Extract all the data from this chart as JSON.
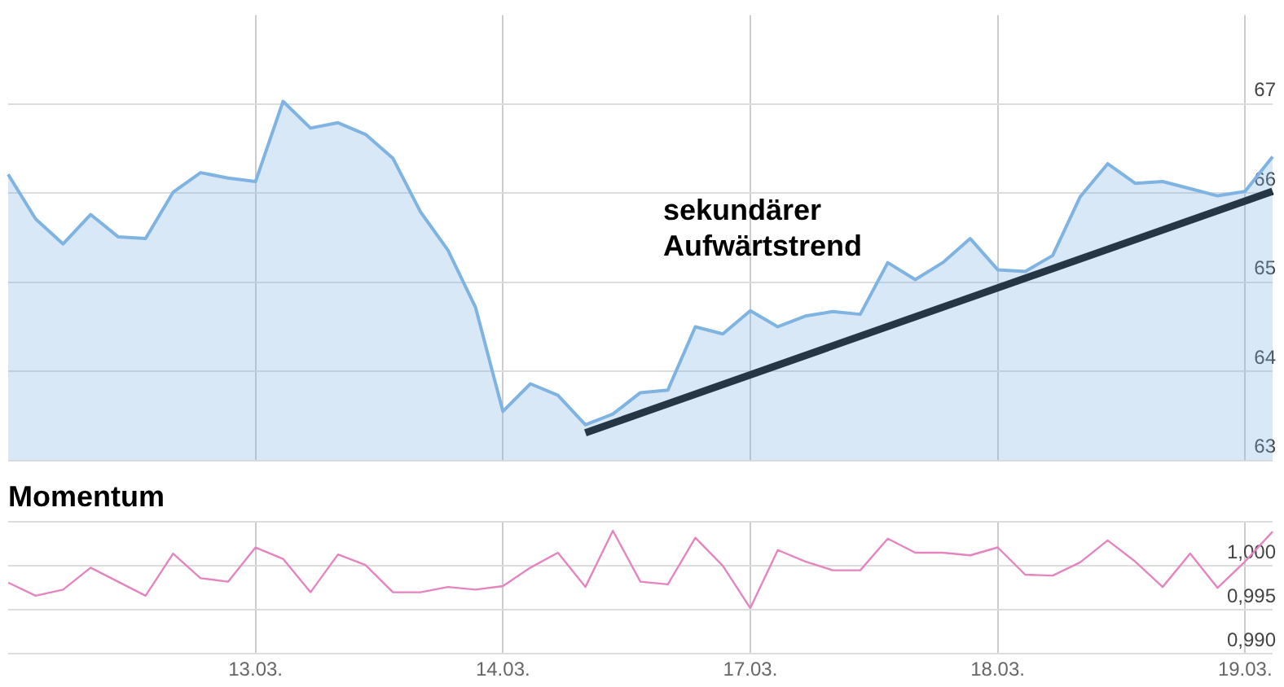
{
  "chart_data": [
    {
      "type": "area",
      "categories": [
        null,
        null,
        null,
        null,
        null,
        null,
        null,
        null,
        null,
        "13.03.",
        null,
        null,
        null,
        null,
        null,
        null,
        null,
        null,
        "14.03.",
        null,
        null,
        null,
        null,
        null,
        null,
        null,
        null,
        "17.03.",
        null,
        null,
        null,
        null,
        null,
        null,
        null,
        null,
        "18.03.",
        null,
        null,
        null,
        null,
        null,
        null,
        null,
        null,
        "19.03.",
        null
      ],
      "series": [
        {
          "color": "#7fb3e1",
          "values": [
            66.21,
            65.71,
            65.43,
            65.76,
            65.51,
            65.49,
            66.01,
            66.23,
            66.17,
            66.13,
            67.03,
            66.73,
            66.79,
            66.66,
            66.39,
            65.79,
            65.36,
            64.72,
            63.55,
            63.86,
            63.73,
            63.4,
            63.52,
            63.76,
            63.79,
            64.5,
            64.42,
            64.68,
            64.5,
            64.62,
            64.67,
            64.64,
            65.22,
            65.03,
            65.22,
            65.49,
            65.14,
            65.12,
            65.3,
            65.96,
            66.33,
            66.11,
            66.13,
            66.05,
            65.97,
            66.02,
            66.41
          ]
        },
        {
          "type": "line",
          "color": "#000000",
          "values": [
            null,
            null,
            null,
            null,
            null,
            null,
            null,
            null,
            null,
            null,
            null,
            null,
            null,
            null,
            null,
            null,
            null,
            null,
            null,
            null,
            null,
            63.31,
            null,
            null,
            null,
            null,
            null,
            null,
            null,
            null,
            null,
            null,
            null,
            null,
            null,
            null,
            null,
            null,
            null,
            null,
            null,
            null,
            null,
            null,
            null,
            null,
            66.02
          ]
        }
      ],
      "ylim": [
        63,
        68
      ],
      "yticks": [
        63,
        64,
        65,
        66,
        67
      ],
      "grid": true,
      "tick_labels": "y",
      "annotations": [
        "sekundärer Aufwärtstrend"
      ]
    },
    {
      "type": "line",
      "title": "Momentum",
      "color": "#e485c0",
      "categories": [
        null,
        null,
        null,
        null,
        null,
        null,
        null,
        null,
        null,
        "13.03.",
        null,
        null,
        null,
        null,
        null,
        null,
        null,
        null,
        "14.03.",
        null,
        null,
        null,
        null,
        null,
        null,
        null,
        null,
        "17.03.",
        null,
        null,
        null,
        null,
        null,
        null,
        null,
        null,
        "18.03.",
        null,
        null,
        null,
        null,
        null,
        null,
        null,
        null,
        "19.03.",
        null
      ],
      "values": [
        0.9981,
        0.9966,
        0.9973,
        0.9998,
        0.9982,
        0.9966,
        1.0014,
        0.9986,
        0.9982,
        1.0021,
        1.0008,
        0.997,
        1.0013,
        1.0001,
        0.997,
        0.997,
        0.9976,
        0.9973,
        0.9977,
        0.9998,
        1.0015,
        0.9976,
        1.004,
        0.9982,
        0.9979,
        1.0032,
        1.0,
        0.9952,
        1.0018,
        1.0005,
        0.9995,
        0.9995,
        1.0031,
        1.0015,
        1.0015,
        1.0012,
        1.0021,
        0.999,
        0.9989,
        1.0004,
        1.0029,
        1.0005,
        0.9976,
        1.0014,
        0.9975,
        1.0005,
        1.0039
      ],
      "ylim": [
        0.99,
        1.005
      ],
      "yticks": [
        {
          "value": 0.99,
          "label": "0,990"
        },
        {
          "value": 0.995,
          "label": "0,995"
        },
        {
          "value": 1.0,
          "label": "1,000"
        },
        {
          "value": 1.005,
          "label": null
        }
      ],
      "grid": true
    }
  ]
}
